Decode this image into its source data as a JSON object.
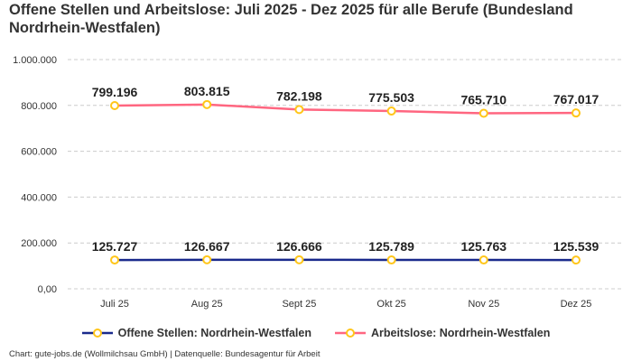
{
  "chart_data": {
    "type": "line",
    "title": "Offene Stellen und Arbeitslose: Juli 2025 - Dez 2025 für alle Berufe (Bundesland Nordrhein-Westfalen)",
    "categories": [
      "Juli 25",
      "Aug 25",
      "Sept 25",
      "Okt 25",
      "Nov 25",
      "Dez 25"
    ],
    "series": [
      {
        "name": "Offene Stellen: Nordrhein-Westfalen",
        "color": "#1a2a8c",
        "values": [
          125727,
          126667,
          126666,
          125789,
          125763,
          125539
        ],
        "labels": [
          "125.727",
          "126.667",
          "126.666",
          "125.789",
          "125.763",
          "125.539"
        ]
      },
      {
        "name": "Arbeitslose: Nordrhein-Westfalen",
        "color": "#ff6680",
        "values": [
          799196,
          803815,
          782198,
          775503,
          765710,
          767017
        ],
        "labels": [
          "799.196",
          "803.815",
          "782.198",
          "775.503",
          "765.710",
          "767.017"
        ]
      }
    ],
    "marker_color": "#ffc61a",
    "ylim": [
      0,
      1000000
    ],
    "yticks": [
      0,
      200000,
      400000,
      600000,
      800000,
      1000000
    ],
    "ytick_labels": [
      "0,00",
      "200.000",
      "400.000",
      "600.000",
      "800.000",
      "1.000.000"
    ],
    "grid": true,
    "legend_position": "bottom"
  },
  "credit": "Chart: gute-jobs.de (Wollmilchsau GmbH) | Datenquelle: Bundesagentur für Arbeit"
}
